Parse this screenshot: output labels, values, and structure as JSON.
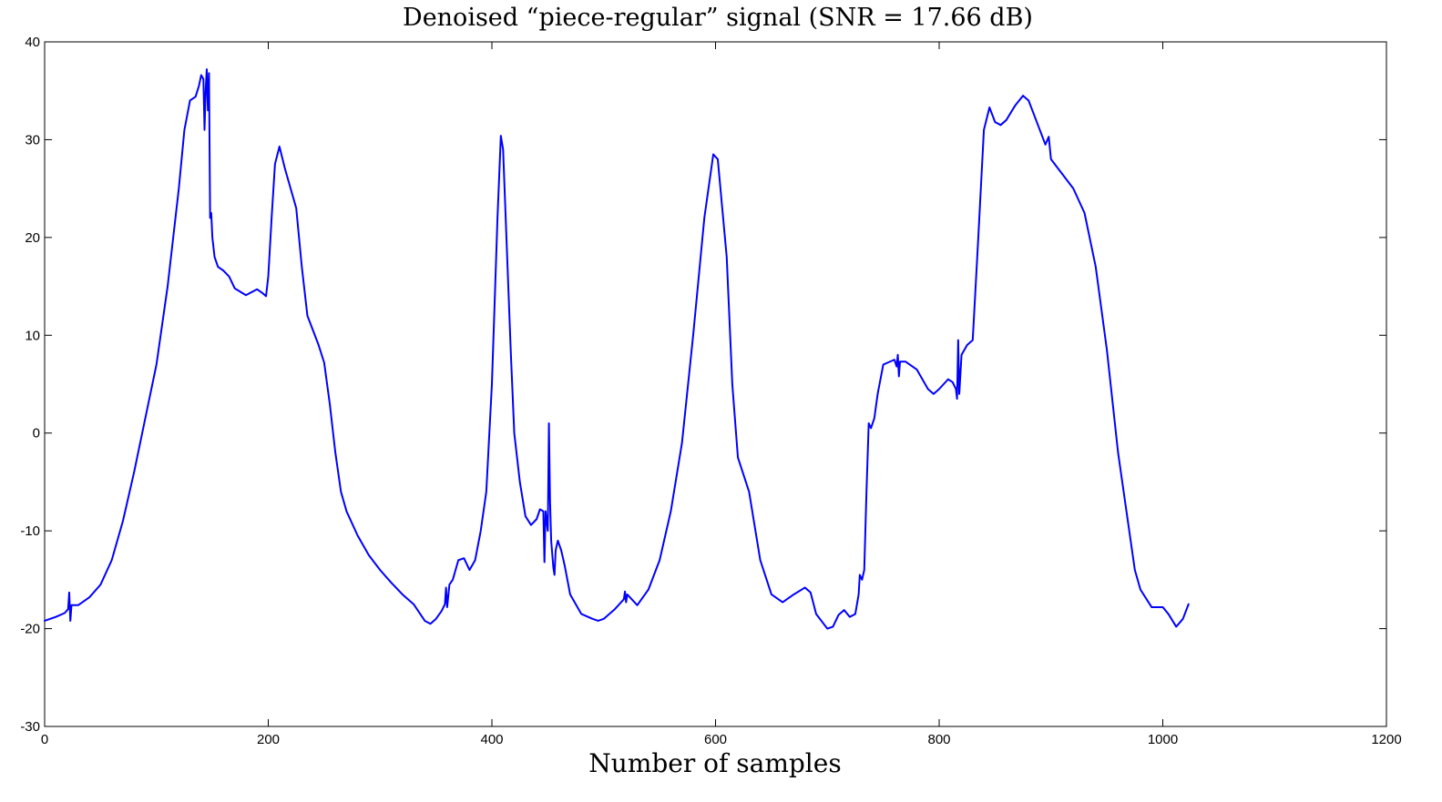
{
  "chart_data": {
    "type": "line",
    "title": "Denoised “piece-regular” signal (SNR = 17.66 dB)",
    "xlabel": "Number of samples",
    "ylabel": "",
    "xlim": [
      0,
      1200
    ],
    "ylim": [
      -30,
      40
    ],
    "xticks": [
      0,
      200,
      400,
      600,
      800,
      1000,
      1200
    ],
    "yticks": [
      -30,
      -20,
      -10,
      0,
      10,
      20,
      30,
      40
    ],
    "xtick_labels": [
      "0",
      "200",
      "400",
      "600",
      "800",
      "1000",
      "1200"
    ],
    "ytick_labels": [
      "-30",
      "-20",
      "-10",
      "0",
      "10",
      "20",
      "30",
      "40"
    ],
    "grid": false,
    "legend": "none",
    "series": [
      {
        "color": "#0000ff",
        "points": [
          [
            0,
            -19.2
          ],
          [
            10,
            -18.8
          ],
          [
            18,
            -18.4
          ],
          [
            21,
            -18.0
          ],
          [
            22,
            -16.3
          ],
          [
            23,
            -19.2
          ],
          [
            24,
            -17.6
          ],
          [
            30,
            -17.6
          ],
          [
            40,
            -16.8
          ],
          [
            50,
            -15.5
          ],
          [
            60,
            -13.0
          ],
          [
            70,
            -9.0
          ],
          [
            80,
            -4.0
          ],
          [
            90,
            1.5
          ],
          [
            100,
            7.0
          ],
          [
            110,
            15.0
          ],
          [
            120,
            25.0
          ],
          [
            125,
            31.0
          ],
          [
            130,
            34.0
          ],
          [
            135,
            34.4
          ],
          [
            138,
            35.5
          ],
          [
            140,
            36.6
          ],
          [
            142,
            36.2
          ],
          [
            143,
            31.0
          ],
          [
            144,
            35.0
          ],
          [
            145,
            37.2
          ],
          [
            146,
            33.0
          ],
          [
            147,
            36.8
          ],
          [
            148,
            22.0
          ],
          [
            149,
            22.5
          ],
          [
            150,
            20.0
          ],
          [
            152,
            18.0
          ],
          [
            155,
            17.0
          ],
          [
            160,
            16.6
          ],
          [
            165,
            16.0
          ],
          [
            170,
            14.8
          ],
          [
            180,
            14.1
          ],
          [
            190,
            14.7
          ],
          [
            195,
            14.3
          ],
          [
            198,
            14.0
          ],
          [
            200,
            16.0
          ],
          [
            203,
            22.0
          ],
          [
            206,
            27.5
          ],
          [
            210,
            29.3
          ],
          [
            215,
            27.0
          ],
          [
            220,
            25.0
          ],
          [
            225,
            23.0
          ],
          [
            230,
            17.0
          ],
          [
            235,
            12.0
          ],
          [
            240,
            10.5
          ],
          [
            245,
            9.0
          ],
          [
            250,
            7.2
          ],
          [
            255,
            3.0
          ],
          [
            260,
            -2.0
          ],
          [
            265,
            -6.0
          ],
          [
            270,
            -8.0
          ],
          [
            280,
            -10.5
          ],
          [
            290,
            -12.5
          ],
          [
            300,
            -14.0
          ],
          [
            310,
            -15.3
          ],
          [
            320,
            -16.5
          ],
          [
            330,
            -17.5
          ],
          [
            340,
            -19.2
          ],
          [
            345,
            -19.5
          ],
          [
            350,
            -19.0
          ],
          [
            355,
            -18.2
          ],
          [
            358,
            -17.5
          ],
          [
            359,
            -15.8
          ],
          [
            360,
            -17.8
          ],
          [
            362,
            -15.5
          ],
          [
            365,
            -15.0
          ],
          [
            370,
            -13.0
          ],
          [
            375,
            -12.8
          ],
          [
            380,
            -14.0
          ],
          [
            385,
            -13.0
          ],
          [
            390,
            -10.0
          ],
          [
            395,
            -6.0
          ],
          [
            400,
            5.0
          ],
          [
            405,
            22.0
          ],
          [
            408,
            30.4
          ],
          [
            410,
            29.0
          ],
          [
            413,
            20.0
          ],
          [
            417,
            8.0
          ],
          [
            420,
            0.0
          ],
          [
            425,
            -5.0
          ],
          [
            430,
            -8.5
          ],
          [
            435,
            -9.4
          ],
          [
            440,
            -8.8
          ],
          [
            443,
            -7.8
          ],
          [
            446,
            -8.0
          ],
          [
            447,
            -13.2
          ],
          [
            448,
            -8.0
          ],
          [
            450,
            -10.0
          ],
          [
            451,
            1.0
          ],
          [
            452,
            -7.0
          ],
          [
            453,
            -11.0
          ],
          [
            455,
            -13.8
          ],
          [
            456,
            -14.5
          ],
          [
            457,
            -12.0
          ],
          [
            459,
            -11.0
          ],
          [
            462,
            -12.0
          ],
          [
            465,
            -13.5
          ],
          [
            470,
            -16.5
          ],
          [
            480,
            -18.5
          ],
          [
            490,
            -19.0
          ],
          [
            495,
            -19.2
          ],
          [
            500,
            -19.0
          ],
          [
            510,
            -18.0
          ],
          [
            518,
            -17.0
          ],
          [
            519,
            -16.2
          ],
          [
            520,
            -17.3
          ],
          [
            521,
            -16.5
          ],
          [
            530,
            -17.6
          ],
          [
            540,
            -16.0
          ],
          [
            550,
            -13.0
          ],
          [
            560,
            -8.0
          ],
          [
            570,
            -1.0
          ],
          [
            580,
            10.0
          ],
          [
            590,
            22.0
          ],
          [
            598,
            28.5
          ],
          [
            602,
            28.0
          ],
          [
            610,
            18.0
          ],
          [
            615,
            5.0
          ],
          [
            620,
            -2.5
          ],
          [
            630,
            -6.0
          ],
          [
            640,
            -13.0
          ],
          [
            650,
            -16.5
          ],
          [
            660,
            -17.3
          ],
          [
            670,
            -16.5
          ],
          [
            680,
            -15.8
          ],
          [
            685,
            -16.3
          ],
          [
            690,
            -18.5
          ],
          [
            700,
            -20.0
          ],
          [
            705,
            -19.8
          ],
          [
            710,
            -18.6
          ],
          [
            715,
            -18.1
          ],
          [
            720,
            -18.8
          ],
          [
            725,
            -18.5
          ],
          [
            728,
            -16.5
          ],
          [
            729,
            -14.5
          ],
          [
            731,
            -15.0
          ],
          [
            733,
            -14.0
          ],
          [
            735,
            -6.0
          ],
          [
            737,
            1.0
          ],
          [
            739,
            0.5
          ],
          [
            742,
            1.5
          ],
          [
            745,
            4.0
          ],
          [
            750,
            7.0
          ],
          [
            760,
            7.5
          ],
          [
            762,
            6.8
          ],
          [
            763,
            8.0
          ],
          [
            764,
            5.8
          ],
          [
            765,
            7.3
          ],
          [
            770,
            7.3
          ],
          [
            780,
            6.5
          ],
          [
            790,
            4.5
          ],
          [
            795,
            4.0
          ],
          [
            800,
            4.5
          ],
          [
            808,
            5.5
          ],
          [
            812,
            5.2
          ],
          [
            815,
            4.5
          ],
          [
            816,
            3.5
          ],
          [
            817,
            9.5
          ],
          [
            818,
            4.0
          ],
          [
            820,
            8.0
          ],
          [
            825,
            9.0
          ],
          [
            830,
            9.5
          ],
          [
            835,
            20.0
          ],
          [
            840,
            31.0
          ],
          [
            845,
            33.3
          ],
          [
            850,
            31.8
          ],
          [
            855,
            31.5
          ],
          [
            860,
            32.0
          ],
          [
            868,
            33.5
          ],
          [
            875,
            34.5
          ],
          [
            880,
            34.0
          ],
          [
            885,
            32.5
          ],
          [
            890,
            31.0
          ],
          [
            895,
            29.5
          ],
          [
            898,
            30.3
          ],
          [
            900,
            28.0
          ],
          [
            910,
            26.5
          ],
          [
            920,
            25.0
          ],
          [
            930,
            22.5
          ],
          [
            940,
            17.0
          ],
          [
            950,
            8.5
          ],
          [
            960,
            -2.0
          ],
          [
            970,
            -10.0
          ],
          [
            975,
            -14.0
          ],
          [
            980,
            -16.0
          ],
          [
            990,
            -17.8
          ],
          [
            1000,
            -17.8
          ],
          [
            1005,
            -18.5
          ],
          [
            1012,
            -19.8
          ],
          [
            1018,
            -19.0
          ],
          [
            1023,
            -17.5
          ]
        ]
      }
    ]
  }
}
